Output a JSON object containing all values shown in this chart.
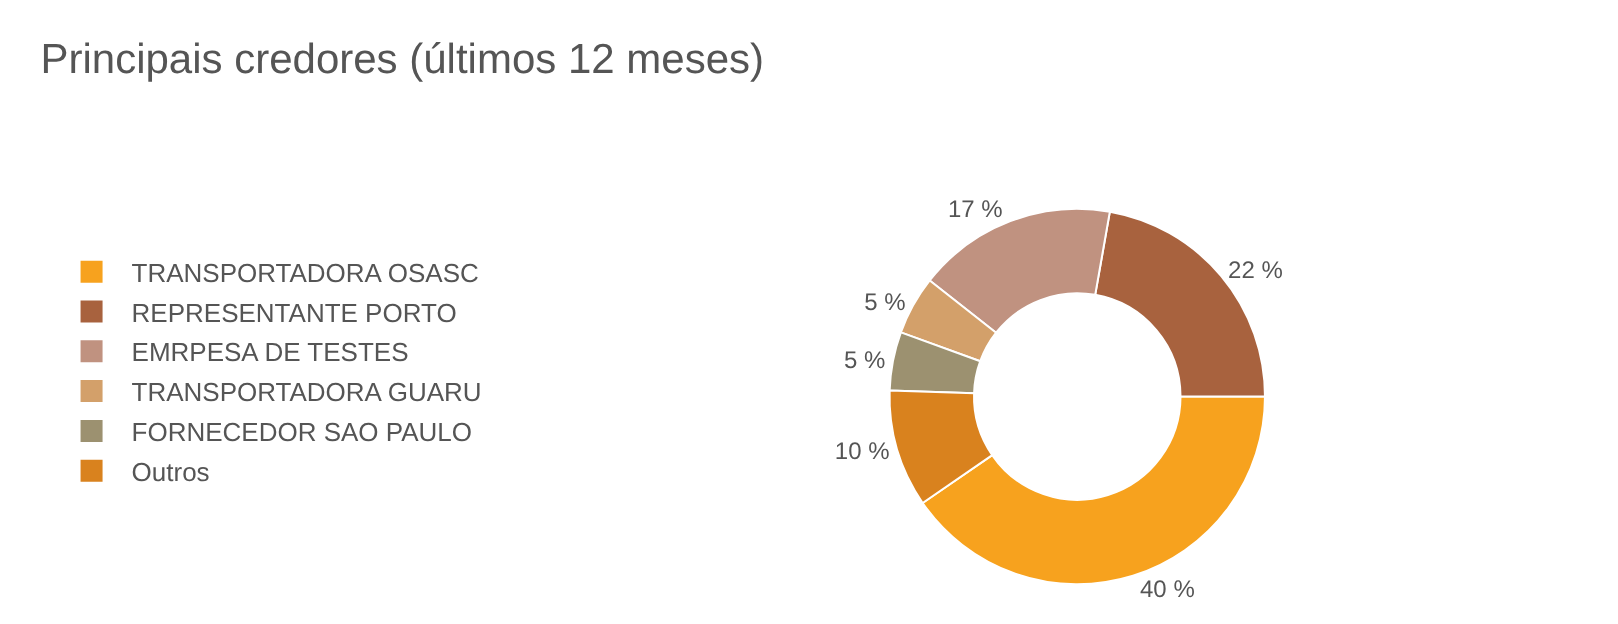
{
  "chart_data": {
    "type": "donut",
    "title": "Principais credores (últimos 12 meses)",
    "categories": [
      "TRANSPORTADORA OSASC",
      "REPRESENTANTE PORTO",
      "EMRPESA DE TESTES",
      "TRANSPORTADORA GUARU",
      "FORNECEDOR SAO PAULO",
      "Outros"
    ],
    "values": [
      40,
      22,
      17,
      5,
      5,
      10
    ],
    "value_labels": [
      "40 %",
      "22 %",
      "17 %",
      "5 %",
      "5 %",
      "10 %"
    ],
    "colors": [
      "#f7a21e",
      "#a8623e",
      "#c09280",
      "#d3a06a",
      "#9c9170",
      "#d9821e"
    ],
    "legend": "left"
  }
}
